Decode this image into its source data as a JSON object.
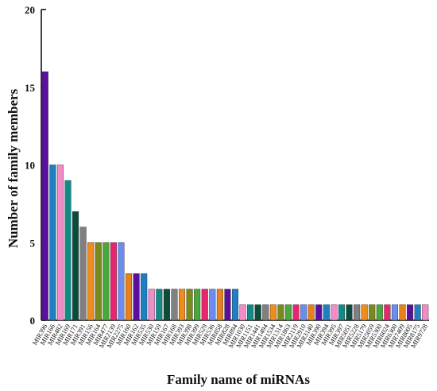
{
  "chart_data": {
    "type": "bar",
    "x_label": "Family name of miRNAs",
    "y_label": "Number of family members",
    "categories": [
      "MIR396",
      "MIR166",
      "MIR482",
      "MIR169",
      "MIR171",
      "MIR391",
      "MIR156",
      "MIR164",
      "MIR477",
      "MIR2139",
      "MIR2275",
      "MIR160",
      "MIR162",
      "MIR535",
      "MIR530",
      "MIR159",
      "MIR167",
      "MIR168",
      "MIR393",
      "MIR398",
      "MIR399",
      "MIR529",
      "MIR536",
      "MIR858",
      "MIR828",
      "MIR894",
      "MIR1030",
      "MIR1151",
      "MIR1441",
      "MIR1494",
      "MIR1534",
      "MIR1314",
      "MIR1863",
      "MIR2119",
      "MIR2910",
      "MIR3140",
      "MIR390",
      "MIR394",
      "MIR395",
      "MIR397",
      "MIR5051",
      "MIR5228",
      "MIR5179",
      "MIR5059",
      "MIR5300",
      "MIR6024",
      "MIR6300",
      "MIR7409",
      "MIR8005",
      "MIR8175",
      "MIR9728"
    ],
    "values": [
      16,
      10,
      10,
      9,
      7,
      6,
      5,
      5,
      5,
      5,
      5,
      3,
      3,
      3,
      2,
      2,
      2,
      2,
      2,
      2,
      2,
      2,
      2,
      2,
      2,
      2,
      1,
      1,
      1,
      1,
      1,
      1,
      1,
      1,
      1,
      1,
      1,
      1,
      1,
      1,
      1,
      1,
      1,
      1,
      1,
      1,
      1,
      1,
      1,
      1,
      1
    ],
    "colors": [
      "#5b0f9e",
      "#1f7fc4",
      "#f28cc8",
      "#138a8a",
      "#0b4d3a",
      "#808080",
      "#f08c1c",
      "#7a8a1a",
      "#49a83a",
      "#e8256e",
      "#6c8cf0",
      "#e8801c"
    ],
    "ylim": [
      0,
      20
    ],
    "yticks": [
      0,
      5,
      10,
      15,
      20
    ]
  }
}
